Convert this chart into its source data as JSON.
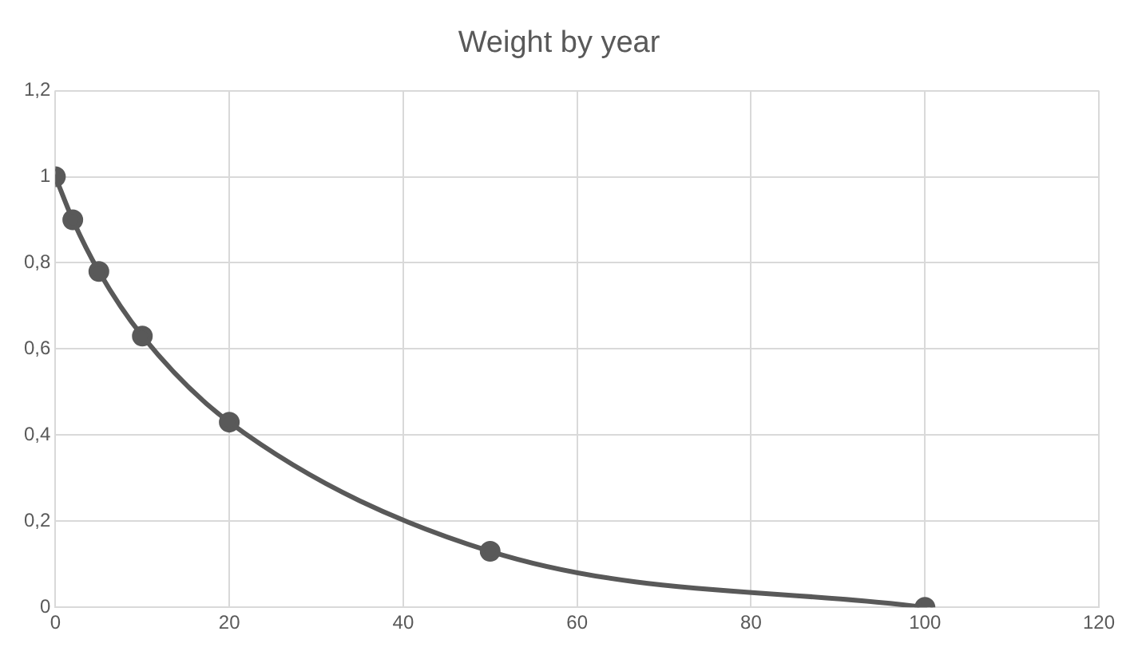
{
  "chart_data": {
    "type": "line",
    "title": "Weight by year",
    "x": [
      0,
      2,
      5,
      10,
      20,
      50,
      100
    ],
    "series": [
      {
        "color": "#595959",
        "values": [
          1,
          0.9,
          0.78,
          0.63,
          0.43,
          0.13,
          0
        ]
      }
    ],
    "xlim": [
      0,
      120
    ],
    "xticks": [
      0,
      20,
      40,
      60,
      80,
      100,
      120
    ],
    "ylim": [
      0,
      1.2
    ],
    "yticks": [
      0,
      {
        "value": 0.2,
        "label": "0,2"
      },
      {
        "value": 0.4,
        "label": "0,4"
      },
      {
        "value": 0.6,
        "label": "0,6"
      },
      {
        "value": 0.8,
        "label": "0,8"
      },
      1,
      {
        "value": 1.2,
        "label": "1,2"
      }
    ],
    "grid": true,
    "legend": false,
    "marker": "circle",
    "line_style": "solid"
  }
}
